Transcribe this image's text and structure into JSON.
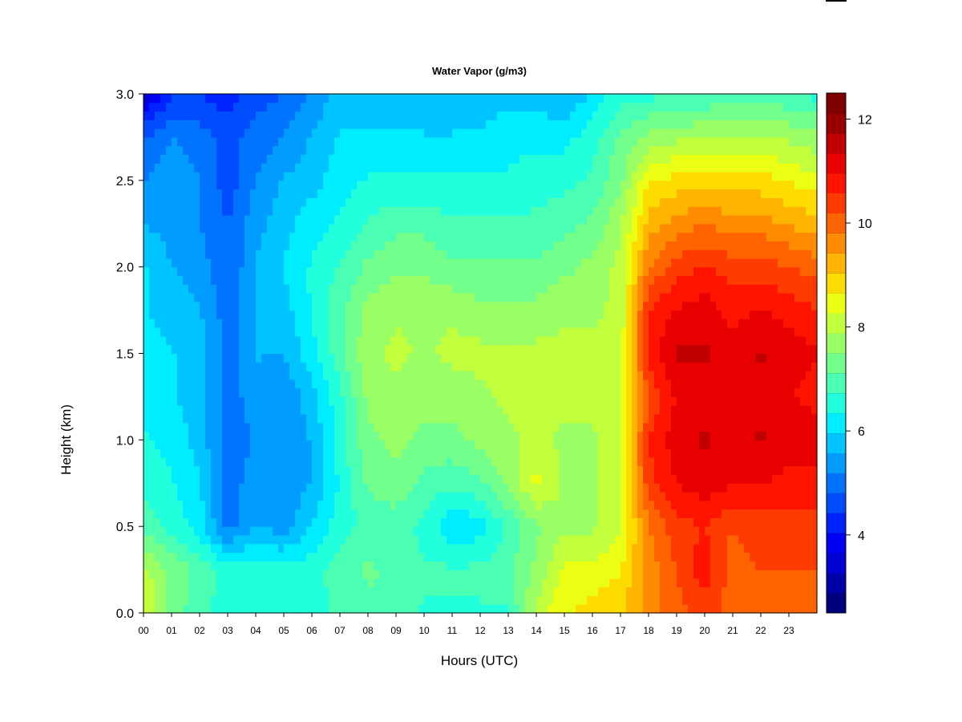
{
  "chart_data": {
    "type": "heatmap",
    "title": "Water Vapor (g/m3)",
    "xlabel": "Hours (UTC)",
    "ylabel": "Height (km)",
    "xlim": [
      0,
      24
    ],
    "ylim": [
      0.0,
      3.0
    ],
    "x_ticks": [
      "00",
      "01",
      "02",
      "03",
      "04",
      "05",
      "06",
      "07",
      "08",
      "09",
      "10",
      "11",
      "12",
      "13",
      "14",
      "15",
      "16",
      "17",
      "18",
      "19",
      "20",
      "21",
      "22",
      "23"
    ],
    "y_ticks": [
      "0.0",
      "0.5",
      "1.0",
      "1.5",
      "2.0",
      "2.5",
      "3.0"
    ],
    "colorbar": {
      "min": 2.5,
      "max": 12.5,
      "step": 0.5,
      "ticks": [
        "4",
        "6",
        "8",
        "10",
        "12"
      ],
      "colors": [
        "#00007F",
        "#0000A8",
        "#0000D0",
        "#0000F8",
        "#0024FF",
        "#004CFF",
        "#0074FF",
        "#009CFF",
        "#00C4FF",
        "#00ECFF",
        "#22FFDC",
        "#4AFFB4",
        "#72FF8C",
        "#9AFF64",
        "#C2FF3C",
        "#EAFF14",
        "#FFDC00",
        "#FFB400",
        "#FF8C00",
        "#FF6400",
        "#FF3C00",
        "#FF1400",
        "#E80000",
        "#C00000",
        "#980000",
        "#800000"
      ]
    },
    "heights_km": [
      0.0,
      0.25,
      0.5,
      0.75,
      1.0,
      1.25,
      1.5,
      1.75,
      2.0,
      2.25,
      2.5,
      2.75,
      3.0
    ],
    "hours": [
      0,
      1,
      2,
      3,
      4,
      5,
      6,
      7,
      8,
      9,
      10,
      11,
      12,
      13,
      14,
      15,
      16,
      17,
      18,
      19,
      20,
      21,
      22,
      23,
      24
    ],
    "values": [
      [
        8.4,
        7.4,
        6.8,
        6.6,
        6.5,
        6.6,
        6.6,
        6.8,
        7.0,
        6.8,
        6.7,
        6.7,
        6.7,
        6.7,
        8.0,
        8.6,
        8.8,
        9.0,
        9.6,
        10.0,
        10.4,
        10.0,
        10.0,
        10.0,
        10.0
      ],
      [
        8.0,
        7.4,
        7.0,
        6.6,
        6.5,
        6.5,
        6.6,
        6.9,
        7.2,
        7.0,
        6.8,
        6.8,
        6.8,
        7.0,
        7.6,
        8.4,
        8.4,
        8.6,
        9.6,
        10.2,
        10.8,
        10.0,
        10.2,
        10.2,
        10.2
      ],
      [
        7.0,
        6.6,
        6.2,
        5.0,
        5.6,
        5.4,
        6.0,
        6.6,
        6.8,
        6.9,
        6.6,
        6.0,
        6.2,
        6.8,
        7.4,
        7.8,
        7.8,
        8.2,
        9.8,
        10.4,
        10.6,
        10.2,
        10.4,
        10.4,
        10.4
      ],
      [
        6.6,
        6.4,
        6.0,
        5.0,
        5.4,
        5.2,
        5.6,
        6.4,
        7.2,
        7.4,
        7.0,
        6.8,
        7.0,
        7.6,
        8.4,
        7.8,
        7.8,
        8.2,
        10.4,
        11.0,
        11.2,
        11.0,
        11.0,
        10.8,
        10.8
      ],
      [
        6.4,
        6.2,
        5.8,
        5.0,
        5.2,
        5.2,
        5.6,
        6.6,
        7.4,
        7.6,
        7.4,
        7.4,
        7.6,
        7.8,
        8.0,
        7.8,
        7.8,
        8.2,
        10.6,
        11.2,
        11.4,
        11.2,
        11.4,
        11.2,
        11.2
      ],
      [
        6.2,
        6.0,
        5.8,
        5.0,
        5.4,
        5.2,
        5.8,
        6.6,
        7.6,
        7.8,
        7.6,
        7.6,
        7.8,
        8.0,
        8.0,
        8.0,
        8.0,
        8.2,
        10.2,
        11.0,
        11.2,
        11.0,
        11.2,
        11.0,
        10.8
      ],
      [
        6.2,
        6.0,
        5.8,
        5.0,
        5.6,
        5.6,
        6.2,
        7.0,
        7.8,
        8.0,
        7.8,
        8.0,
        8.0,
        8.0,
        8.0,
        8.0,
        8.0,
        8.0,
        10.8,
        11.4,
        11.4,
        11.2,
        11.4,
        11.2,
        11.0
      ],
      [
        6.0,
        5.8,
        5.6,
        5.0,
        5.6,
        5.8,
        6.4,
        7.0,
        7.6,
        7.8,
        7.8,
        7.8,
        7.6,
        7.6,
        7.6,
        7.8,
        7.8,
        8.0,
        10.6,
        11.0,
        11.2,
        10.8,
        11.0,
        10.8,
        10.6
      ],
      [
        6.0,
        5.6,
        5.4,
        4.8,
        5.6,
        6.0,
        6.4,
        6.8,
        7.2,
        7.4,
        7.4,
        7.2,
        7.2,
        7.2,
        7.2,
        7.4,
        7.6,
        8.0,
        9.8,
        10.4,
        10.6,
        10.4,
        10.4,
        10.2,
        10.0
      ],
      [
        5.6,
        5.4,
        5.2,
        4.8,
        5.4,
        5.8,
        6.2,
        6.4,
        6.8,
        7.0,
        7.0,
        6.8,
        6.8,
        6.8,
        6.8,
        7.0,
        7.2,
        7.8,
        9.2,
        9.6,
        9.8,
        9.6,
        9.6,
        9.4,
        9.2
      ],
      [
        5.2,
        5.4,
        5.2,
        4.6,
        5.2,
        5.6,
        5.8,
        6.2,
        6.4,
        6.4,
        6.4,
        6.4,
        6.4,
        6.4,
        6.6,
        6.6,
        6.8,
        7.4,
        8.6,
        8.8,
        8.8,
        8.8,
        8.8,
        8.6,
        8.4
      ],
      [
        4.8,
        5.2,
        5.0,
        4.6,
        5.0,
        5.2,
        5.6,
        6.0,
        6.0,
        6.0,
        6.0,
        6.0,
        6.0,
        6.2,
        6.2,
        6.2,
        6.6,
        7.2,
        7.6,
        7.8,
        7.8,
        8.0,
        8.0,
        7.8,
        7.6
      ],
      [
        3.4,
        4.4,
        4.4,
        4.2,
        4.6,
        4.8,
        5.2,
        5.8,
        5.6,
        5.8,
        5.6,
        5.6,
        5.8,
        5.8,
        5.8,
        5.6,
        6.0,
        6.6,
        6.6,
        6.8,
        6.8,
        6.8,
        6.8,
        6.8,
        6.6
      ]
    ]
  }
}
